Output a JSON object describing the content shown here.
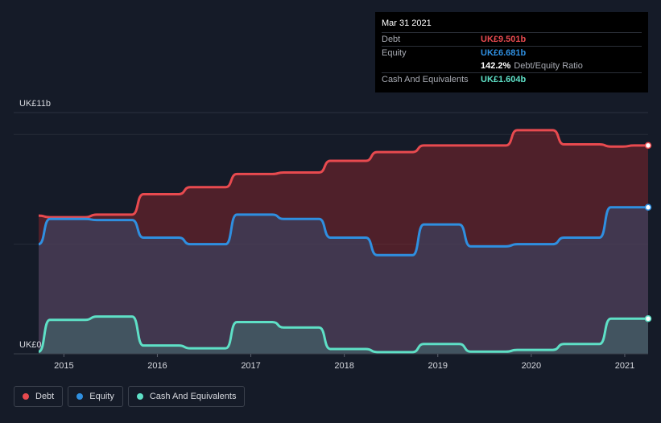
{
  "tooltip": {
    "date": "Mar 31 2021",
    "rows": [
      {
        "label": "Debt",
        "value": "UK£9.501b",
        "color": "#e84a4f"
      },
      {
        "label": "Equity",
        "value": "UK£6.681b",
        "color": "#2f8fe0"
      },
      {
        "ratio": "142.2%",
        "ratio_label": "Debt/Equity Ratio"
      },
      {
        "label": "Cash And Equivalents",
        "value": "UK£1.604b",
        "color": "#5ee0c6"
      }
    ]
  },
  "legend": [
    {
      "label": "Debt",
      "color": "#e84a4f"
    },
    {
      "label": "Equity",
      "color": "#2f8fe0"
    },
    {
      "label": "Cash And Equivalents",
      "color": "#5ee0c6"
    }
  ],
  "chart_data": {
    "type": "area",
    "y_top_label": "UK£11b",
    "y_bottom_label": "UK£0",
    "ylim": [
      0,
      11
    ],
    "xlim": [
      2014.73,
      2021.25
    ],
    "x_ticks": [
      "2015",
      "2016",
      "2017",
      "2018",
      "2019",
      "2020",
      "2021"
    ],
    "x_tick_values": [
      2015,
      2016,
      2017,
      2018,
      2019,
      2020,
      2021
    ],
    "grid": true,
    "series": [
      {
        "name": "Debt",
        "color": "#e84a4f",
        "x": [
          2014.73,
          2014.98,
          2015.23,
          2015.48,
          2015.73,
          2015.98,
          2016.23,
          2016.48,
          2016.73,
          2016.98,
          2017.23,
          2017.48,
          2017.73,
          2017.98,
          2018.23,
          2018.48,
          2018.73,
          2018.98,
          2019.23,
          2019.48,
          2019.73,
          2019.98,
          2020.23,
          2020.48,
          2020.73,
          2020.98,
          2021.25
        ],
        "y": [
          6.3,
          6.23,
          6.23,
          6.35,
          6.35,
          7.28,
          7.28,
          7.6,
          7.6,
          8.2,
          8.2,
          8.27,
          8.27,
          8.8,
          8.8,
          9.2,
          9.2,
          9.5,
          9.5,
          9.5,
          9.5,
          10.2,
          10.2,
          9.55,
          9.55,
          9.45,
          9.501
        ]
      },
      {
        "name": "Equity",
        "color": "#2f8fe0",
        "x": [
          2014.73,
          2014.98,
          2015.23,
          2015.48,
          2015.73,
          2015.98,
          2016.23,
          2016.48,
          2016.73,
          2016.98,
          2017.23,
          2017.48,
          2017.73,
          2017.98,
          2018.23,
          2018.48,
          2018.73,
          2018.98,
          2019.23,
          2019.48,
          2019.73,
          2019.98,
          2020.23,
          2020.48,
          2020.73,
          2020.98,
          2021.25
        ],
        "y": [
          5.0,
          6.15,
          6.15,
          6.1,
          6.1,
          5.3,
          5.3,
          5.0,
          5.0,
          6.35,
          6.35,
          6.15,
          6.15,
          5.3,
          5.3,
          4.5,
          4.5,
          5.9,
          5.9,
          4.9,
          4.9,
          5.0,
          5.0,
          5.3,
          5.3,
          6.681,
          6.681
        ]
      },
      {
        "name": "Cash And Equivalents",
        "color": "#5ee0c6",
        "x": [
          2014.73,
          2014.98,
          2015.23,
          2015.48,
          2015.73,
          2015.98,
          2016.23,
          2016.48,
          2016.73,
          2016.98,
          2017.23,
          2017.48,
          2017.73,
          2017.98,
          2018.23,
          2018.48,
          2018.73,
          2018.98,
          2019.23,
          2019.48,
          2019.73,
          2019.98,
          2020.23,
          2020.48,
          2020.73,
          2020.98,
          2021.25
        ],
        "y": [
          0.1,
          1.55,
          1.55,
          1.7,
          1.7,
          0.38,
          0.38,
          0.25,
          0.25,
          1.45,
          1.45,
          1.2,
          1.2,
          0.22,
          0.22,
          0.08,
          0.08,
          0.45,
          0.45,
          0.1,
          0.1,
          0.18,
          0.18,
          0.45,
          0.45,
          1.604,
          1.604
        ]
      }
    ]
  }
}
